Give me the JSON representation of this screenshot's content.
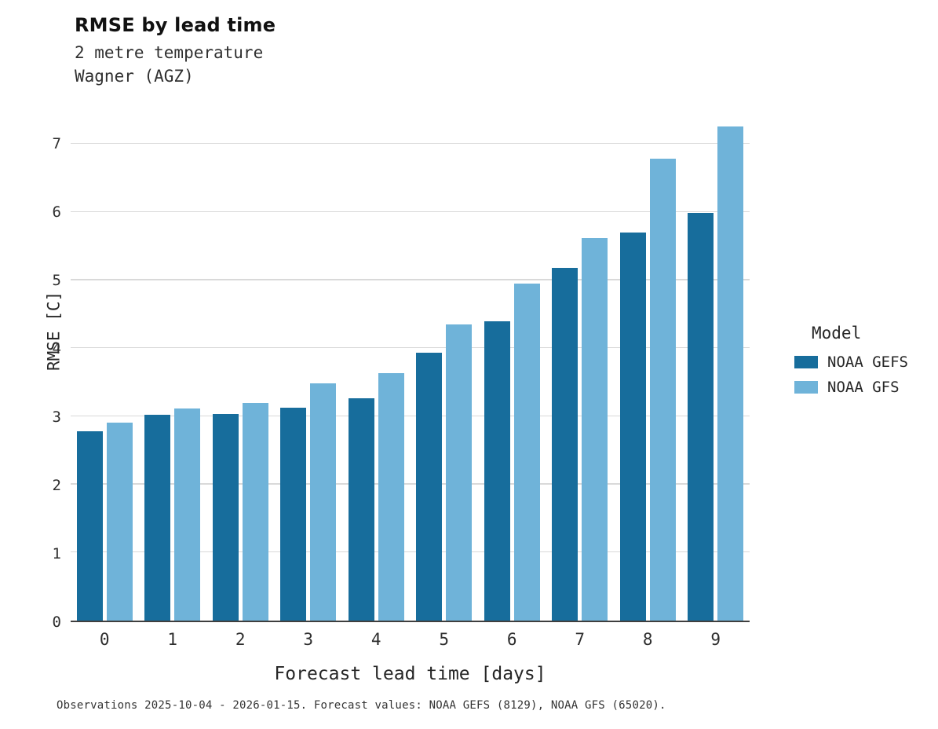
{
  "header": {
    "title": "RMSE by lead time",
    "subtitle_line1": "2 metre temperature",
    "subtitle_line2": "Wagner (AGZ)"
  },
  "chart_data": {
    "type": "bar",
    "title": "RMSE by lead time",
    "subtitle": [
      "2 metre temperature",
      "Wagner (AGZ)"
    ],
    "xlabel": "Forecast lead time [days]",
    "ylabel": "RMSE [C]",
    "categories": [
      "0",
      "1",
      "2",
      "3",
      "4",
      "5",
      "6",
      "7",
      "8",
      "9"
    ],
    "series": [
      {
        "name": "NOAA GEFS",
        "color": "#176d9c",
        "values": [
          2.78,
          3.02,
          3.04,
          3.13,
          3.27,
          3.94,
          4.4,
          5.18,
          5.7,
          5.99
        ]
      },
      {
        "name": "NOAA GFS",
        "color": "#6fb3d9",
        "values": [
          2.91,
          3.12,
          3.2,
          3.49,
          3.63,
          4.35,
          4.95,
          5.62,
          6.78,
          7.26
        ]
      }
    ],
    "ylim": [
      0,
      7.5
    ],
    "yticks": [
      0,
      1,
      2,
      3,
      4,
      5,
      6,
      7
    ],
    "grid": true,
    "gridline_color": "#d9d9d9",
    "legend_title": "Model",
    "legend_position": "right"
  },
  "footer": {
    "caption": "Observations 2025-10-04 - 2026-01-15. Forecast values: NOAA GEFS (8129), NOAA GFS (65020)."
  }
}
